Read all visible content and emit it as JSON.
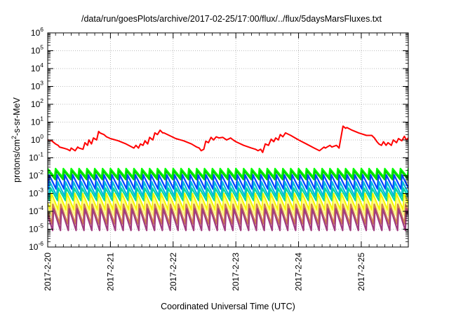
{
  "chart_data": {
    "type": "line",
    "title": "/data/run/goesPlots/archive/2017-02-25/17:00/flux/../flux/5daysMarsFluxes.txt",
    "xlabel": "Coordinated Universal Time (UTC)",
    "ylabel": {
      "pre": "protons/cm",
      "sup": "2",
      "post": "-s-sr-MeV"
    },
    "yscale": "log",
    "ylim": [
      1e-06,
      1000000.0
    ],
    "xlim": [
      "2017-02-20T00:00",
      "2017-02-25T18:00"
    ],
    "grid": true,
    "legend": "none",
    "x_ticks": [
      "2017-2-20",
      "2017-2-21",
      "2017-2-22",
      "2017-2-23",
      "2017-2-24",
      "2017-2-25"
    ],
    "y_ticks": [
      {
        "base": "10",
        "exp": "-6"
      },
      {
        "base": "10",
        "exp": "-5"
      },
      {
        "base": "10",
        "exp": "-4"
      },
      {
        "base": "10",
        "exp": "-3"
      },
      {
        "base": "10",
        "exp": "-2"
      },
      {
        "base": "10",
        "exp": "-1"
      },
      {
        "base": "10",
        "exp": "0"
      },
      {
        "base": "10",
        "exp": "1"
      },
      {
        "base": "10",
        "exp": "2"
      },
      {
        "base": "10",
        "exp": "3"
      },
      {
        "base": "10",
        "exp": "4"
      },
      {
        "base": "10",
        "exp": "5"
      },
      {
        "base": "10",
        "exp": "6"
      }
    ],
    "series": [
      {
        "color": "#ff0000",
        "sawtooth": false,
        "x": [
          "2017-02-20T00:00",
          "2017-02-20T01:30",
          "2017-02-20T03:00",
          "2017-02-20T04:00",
          "2017-02-20T04:30",
          "2017-02-20T06:00",
          "2017-02-20T07:30",
          "2017-02-20T08:30",
          "2017-02-20T09:00",
          "2017-02-20T10:30",
          "2017-02-20T11:30",
          "2017-02-20T12:00",
          "2017-02-20T13:30",
          "2017-02-20T14:15",
          "2017-02-20T15:15",
          "2017-02-20T15:45",
          "2017-02-20T16:45",
          "2017-02-20T17:30",
          "2017-02-20T18:45",
          "2017-02-20T19:30",
          "2017-02-20T20:00",
          "2017-02-20T21:30",
          "2017-02-20T22:30",
          "2017-02-21T00:00",
          "2017-02-21T03:00",
          "2017-02-21T06:00",
          "2017-02-21T09:00",
          "2017-02-21T09:45",
          "2017-02-21T10:45",
          "2017-02-21T11:30",
          "2017-02-21T12:30",
          "2017-02-21T13:15",
          "2017-02-21T14:15",
          "2017-02-21T15:00",
          "2017-02-21T16:15",
          "2017-02-21T17:00",
          "2017-02-21T18:00",
          "2017-02-21T19:00",
          "2017-02-21T20:00",
          "2017-02-21T20:30",
          "2017-02-21T22:30",
          "2017-02-22T01:00",
          "2017-02-22T04:00",
          "2017-02-22T07:00",
          "2017-02-22T09:00",
          "2017-02-22T10:00",
          "2017-02-22T10:45",
          "2017-02-22T11:45",
          "2017-02-22T12:30",
          "2017-02-22T13:30",
          "2017-02-22T14:30",
          "2017-02-22T15:30",
          "2017-02-22T16:30",
          "2017-02-22T17:30",
          "2017-02-22T19:00",
          "2017-02-22T20:30",
          "2017-02-22T22:00",
          "2017-02-22T23:00",
          "2017-02-23T00:00",
          "2017-02-23T03:00",
          "2017-02-23T06:00",
          "2017-02-23T07:30",
          "2017-02-23T08:30",
          "2017-02-23T09:30",
          "2017-02-23T10:15",
          "2017-02-23T11:15",
          "2017-02-23T12:30",
          "2017-02-23T13:30",
          "2017-02-23T14:30",
          "2017-02-23T15:15",
          "2017-02-23T16:15",
          "2017-02-23T17:00",
          "2017-02-23T18:00",
          "2017-02-23T19:00",
          "2017-02-23T21:00",
          "2017-02-24T00:00",
          "2017-02-24T03:00",
          "2017-02-24T06:00",
          "2017-02-24T08:00",
          "2017-02-24T09:45",
          "2017-02-24T10:15",
          "2017-02-24T12:00",
          "2017-02-24T12:45",
          "2017-02-24T14:30",
          "2017-02-24T15:30",
          "2017-02-24T17:00",
          "2017-02-24T18:00",
          "2017-02-24T18:30",
          "2017-02-24T20:30",
          "2017-02-24T23:00",
          "2017-02-25T02:00",
          "2017-02-25T04:00",
          "2017-02-25T05:00",
          "2017-02-25T06:00",
          "2017-02-25T06:45",
          "2017-02-25T07:45",
          "2017-02-25T08:30",
          "2017-02-25T09:30",
          "2017-02-25T10:15",
          "2017-02-25T11:30",
          "2017-02-25T12:15",
          "2017-02-25T13:30",
          "2017-02-25T14:15",
          "2017-02-25T15:30",
          "2017-02-25T16:30",
          "2017-02-25T17:15",
          "2017-02-25T18:00"
        ],
        "y": [
          1.0,
          0.9,
          0.6,
          0.5,
          0.4,
          0.35,
          0.3,
          0.25,
          0.35,
          0.25,
          0.4,
          0.35,
          0.3,
          0.7,
          0.5,
          1.0,
          0.6,
          1.3,
          1.0,
          3.0,
          2.5,
          2.0,
          1.5,
          1.2,
          0.9,
          0.6,
          0.35,
          0.5,
          0.35,
          0.6,
          0.5,
          0.9,
          0.6,
          1.4,
          1.0,
          2.5,
          2.0,
          3.5,
          2.5,
          2.5,
          1.8,
          1.2,
          0.9,
          0.6,
          0.4,
          0.35,
          0.25,
          0.3,
          0.85,
          0.7,
          1.4,
          1.0,
          1.5,
          1.3,
          1.4,
          1.0,
          1.3,
          1.0,
          0.8,
          0.5,
          0.35,
          0.3,
          0.25,
          0.3,
          0.2,
          0.6,
          0.5,
          1.1,
          0.8,
          1.3,
          1.0,
          2.0,
          1.5,
          2.5,
          1.8,
          1.0,
          0.6,
          0.35,
          0.25,
          0.4,
          0.35,
          0.5,
          0.4,
          0.5,
          0.35,
          6.0,
          4.5,
          5.0,
          3.5,
          2.5,
          1.8,
          1.8,
          1.3,
          0.8,
          0.6,
          0.5,
          0.8,
          0.5,
          0.7,
          0.5,
          1.0,
          0.7,
          1.2,
          0.9,
          1.6,
          1.0,
          1.3
        ]
      },
      {
        "color": "#00ff00",
        "sawtooth": true,
        "lo": 0.0085,
        "hi": 0.025
      },
      {
        "color": "#00d000",
        "sawtooth": true,
        "lo": 0.006,
        "hi": 0.018
      },
      {
        "color": "#0044ff",
        "sawtooth": true,
        "lo": 0.0018,
        "hi": 0.011
      },
      {
        "color": "#00b8e0",
        "sawtooth": true,
        "lo": 0.0007,
        "hi": 0.0045
      },
      {
        "color": "#00d8a0",
        "sawtooth": true,
        "lo": 0.0004,
        "hi": 0.002
      },
      {
        "color": "#f4f400",
        "sawtooth": true,
        "lo": 0.00012,
        "hi": 0.001
      },
      {
        "color": "#ffff80",
        "sawtooth": true,
        "lo": 6e-05,
        "hi": 0.0005
      },
      {
        "color": "#d08050",
        "sawtooth": true,
        "lo": 2e-05,
        "hi": 0.00025
      },
      {
        "color": "#a03c80",
        "sawtooth": true,
        "lo": 8.5e-06,
        "hi": 0.00014
      }
    ]
  }
}
